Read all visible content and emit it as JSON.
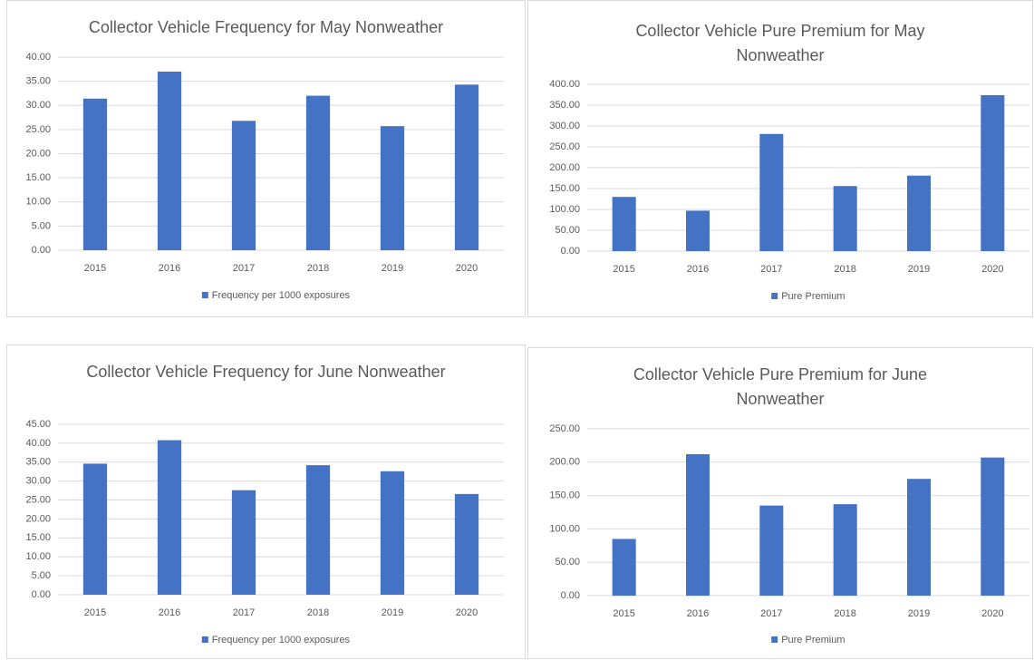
{
  "chart_data": [
    {
      "type": "bar",
      "title": "Collector Vehicle Frequency for May Nonweather",
      "categories": [
        "2015",
        "2016",
        "2017",
        "2018",
        "2019",
        "2020"
      ],
      "series": [
        {
          "name": "Frequency per 1000 exposures",
          "color": "#4472c4",
          "values": [
            31.4,
            37.0,
            26.8,
            32.0,
            25.7,
            34.3
          ]
        }
      ],
      "ylim": [
        0,
        40
      ],
      "yticks": [
        {
          "value": 0,
          "label": "0.00"
        },
        {
          "value": 5,
          "label": "5.00"
        },
        {
          "value": 10,
          "label": "10.00"
        },
        {
          "value": 15,
          "label": "15.00"
        },
        {
          "value": 20,
          "label": "20.00"
        },
        {
          "value": 25,
          "label": "25.00"
        },
        {
          "value": 30,
          "label": "30.00"
        },
        {
          "value": 35,
          "label": "35.00"
        },
        {
          "value": 40,
          "label": "40.00"
        }
      ],
      "grid": true,
      "legend": "bottom"
    },
    {
      "type": "bar",
      "title": "Collector Vehicle Pure Premium for May Nonweather",
      "categories": [
        "2015",
        "2016",
        "2017",
        "2018",
        "2019",
        "2020"
      ],
      "series": [
        {
          "name": "Pure Premium",
          "color": "#4472c4",
          "values": [
            130,
            97,
            281,
            156,
            181,
            374
          ]
        }
      ],
      "ylim": [
        0,
        400
      ],
      "yticks": [
        {
          "value": 0,
          "label": "0.00"
        },
        {
          "value": 50,
          "label": "50.00"
        },
        {
          "value": 100,
          "label": "100.00"
        },
        {
          "value": 150,
          "label": "150.00"
        },
        {
          "value": 200,
          "label": "200.00"
        },
        {
          "value": 250,
          "label": "250.00"
        },
        {
          "value": 300,
          "label": "300.00"
        },
        {
          "value": 350,
          "label": "350.00"
        },
        {
          "value": 400,
          "label": "400.00"
        }
      ],
      "grid": true,
      "legend": "bottom"
    },
    {
      "type": "bar",
      "title": "Collector Vehicle Frequency for June Nonweather",
      "categories": [
        "2015",
        "2016",
        "2017",
        "2018",
        "2019",
        "2020"
      ],
      "series": [
        {
          "name": "Frequency per 1000 exposures",
          "color": "#4472c4",
          "values": [
            34.6,
            40.8,
            27.6,
            34.2,
            32.6,
            26.6
          ]
        }
      ],
      "ylim": [
        0,
        45
      ],
      "yticks": [
        {
          "value": 0,
          "label": "0.00"
        },
        {
          "value": 5,
          "label": "5.00"
        },
        {
          "value": 10,
          "label": "10.00"
        },
        {
          "value": 15,
          "label": "15.00"
        },
        {
          "value": 20,
          "label": "20.00"
        },
        {
          "value": 25,
          "label": "25.00"
        },
        {
          "value": 30,
          "label": "30.00"
        },
        {
          "value": 35,
          "label": "35.00"
        },
        {
          "value": 40,
          "label": "40.00"
        },
        {
          "value": 45,
          "label": "45.00"
        }
      ],
      "grid": true,
      "legend": "bottom"
    },
    {
      "type": "bar",
      "title": "Collector Vehicle Pure Premium for June Nonweather",
      "categories": [
        "2015",
        "2016",
        "2017",
        "2018",
        "2019",
        "2020"
      ],
      "series": [
        {
          "name": "Pure Premium",
          "color": "#4472c4",
          "values": [
            85,
            212,
            135,
            137,
            175,
            207
          ]
        }
      ],
      "ylim": [
        0,
        250
      ],
      "yticks": [
        {
          "value": 0,
          "label": "0.00"
        },
        {
          "value": 50,
          "label": "50.00"
        },
        {
          "value": 100,
          "label": "100.00"
        },
        {
          "value": 150,
          "label": "150.00"
        },
        {
          "value": 200,
          "label": "200.00"
        },
        {
          "value": 250,
          "label": "250.00"
        }
      ],
      "grid": true,
      "legend": "bottom"
    }
  ]
}
